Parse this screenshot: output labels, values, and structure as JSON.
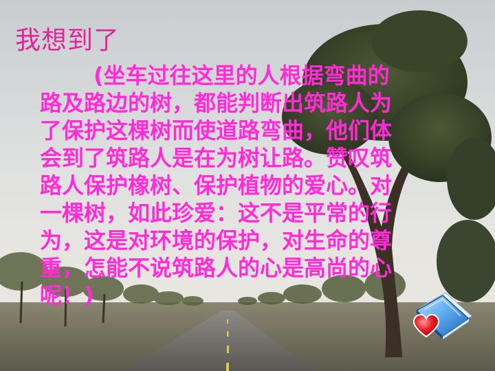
{
  "slide": {
    "heading": "我想到了",
    "paragraph_lines": [
      "(坐车过往这里的人根据弯曲的",
      "路及路边的树，都能判断出筑路人为",
      "了保护这棵树而使道路弯曲，他们体",
      "会到了筑路人是在为树让路。赞叹筑",
      "路人保护橡树、保护植物的爱心。对",
      "一棵树，如此珍爱：这不是平常的行",
      "为，这是对环境的保护，对生命的尊",
      "重，怎能不说筑路人的心是高尚的心",
      "呢！)"
    ]
  },
  "icons": {
    "decoration": "book-heart-icon"
  },
  "colors": {
    "heading": "#e0249a",
    "body_text": "#ff2bd6",
    "sky": "#d9dcdc",
    "road": "#6e6b66",
    "foliage": "#3d4a2c"
  }
}
